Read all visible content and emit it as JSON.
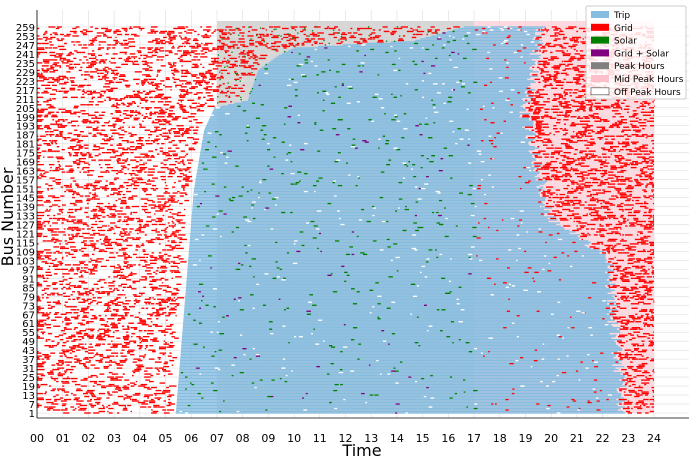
{
  "chart_data": {
    "type": "heatmap",
    "xlabel": "Time",
    "ylabel": "Bus Number",
    "x_ticks": [
      "00",
      "01",
      "02",
      "03",
      "04",
      "05",
      "06",
      "07",
      "08",
      "09",
      "10",
      "11",
      "12",
      "13",
      "14",
      "15",
      "16",
      "17",
      "18",
      "19",
      "20",
      "21",
      "22",
      "23",
      "24"
    ],
    "x_range": [
      0,
      24
    ],
    "y_range": [
      1,
      263
    ],
    "y_ticks": [
      1,
      7,
      13,
      19,
      25,
      31,
      37,
      43,
      49,
      55,
      61,
      67,
      73,
      79,
      85,
      91,
      97,
      103,
      109,
      115,
      121,
      127,
      133,
      139,
      145,
      151,
      157,
      163,
      169,
      175,
      181,
      187,
      193,
      199,
      205,
      211,
      217,
      223,
      229,
      235,
      241,
      247,
      253,
      259
    ],
    "grid": true,
    "legend_position": "top-right",
    "legend": [
      {
        "label": "Trip",
        "color": "#87bde0"
      },
      {
        "label": "Grid",
        "color": "#ff0000"
      },
      {
        "label": "Solar",
        "color": "#008000"
      },
      {
        "label": "Grid + Solar",
        "color": "#800080"
      },
      {
        "label": "Peak Hours",
        "color": "#808080"
      },
      {
        "label": "Mid Peak Hours",
        "color": "#ffc0cb"
      },
      {
        "label": "Off Peak Hours",
        "color": "#ffffff"
      }
    ],
    "peak_hours": [
      7,
      17
    ],
    "mid_peak_hours": [
      17,
      24
    ],
    "trip_start_by_bus": [
      [
        1,
        5.4
      ],
      [
        150,
        6.1
      ],
      [
        190,
        6.5
      ],
      [
        205,
        6.9
      ],
      [
        210,
        8.2
      ],
      [
        230,
        8.6
      ],
      [
        240,
        9.4
      ],
      [
        245,
        10.0
      ],
      [
        250,
        14.7
      ],
      [
        259,
        16.6
      ]
    ],
    "trip_end_by_bus": [
      [
        1,
        22.8
      ],
      [
        100,
        22.2
      ],
      [
        110,
        21.8
      ],
      [
        130,
        20.0
      ],
      [
        200,
        19.0
      ],
      [
        259,
        19.6
      ]
    ]
  }
}
